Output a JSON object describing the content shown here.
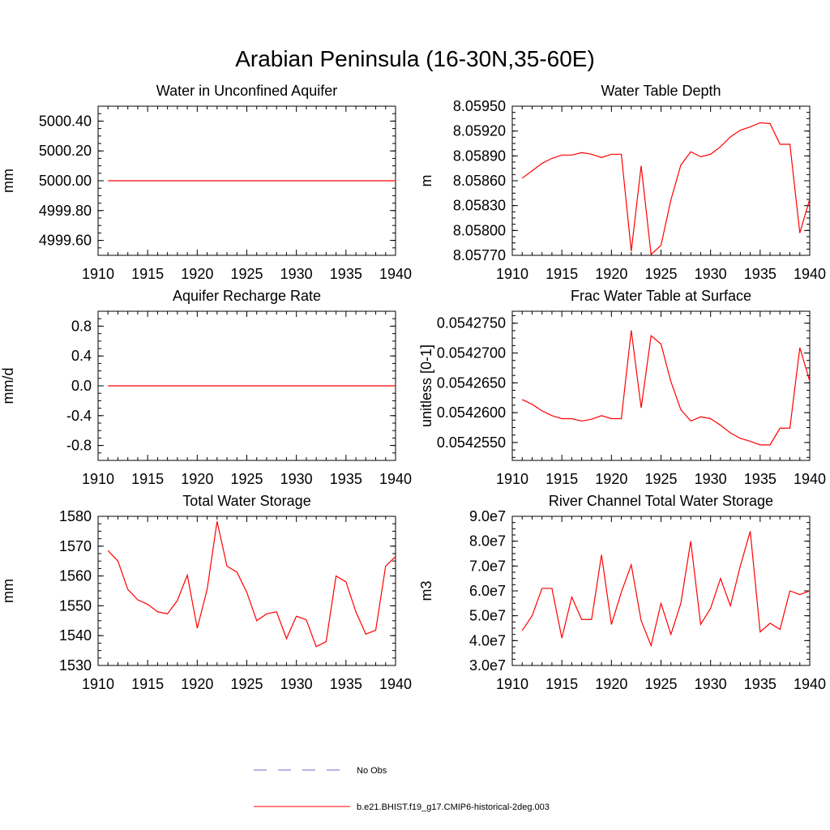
{
  "title": "Arabian Peninsula (16-30N,35-60E)",
  "legend": {
    "no_obs": "No Obs",
    "model": "b.e21.BHIST.f19_g17.CMIP6-historical-2deg.003",
    "no_obs_color": "#6a6acc",
    "model_color": "#ff0000"
  },
  "chart_data": [
    {
      "type": "line",
      "title": "Water in Unconfined Aquifer",
      "ylabel": "mm",
      "xlim": [
        1910,
        1940
      ],
      "ylim": [
        4999.5,
        5000.5
      ],
      "xticks": [
        1910,
        1915,
        1920,
        1925,
        1930,
        1935,
        1940
      ],
      "yticks": [
        4999.6,
        4999.8,
        5000.0,
        5000.2,
        5000.4
      ],
      "ytick_labels": [
        "4999.60",
        "4999.80",
        "5000.00",
        "5000.20",
        "5000.40"
      ],
      "x": [
        1911,
        1940
      ],
      "values": [
        5000.0,
        5000.0
      ]
    },
    {
      "type": "line",
      "title": "Water Table Depth",
      "ylabel": "m",
      "xlim": [
        1910,
        1940
      ],
      "ylim": [
        8.0577,
        8.0595
      ],
      "xticks": [
        1910,
        1915,
        1920,
        1925,
        1930,
        1935,
        1940
      ],
      "yticks": [
        8.0577,
        8.058,
        8.0583,
        8.0586,
        8.0589,
        8.0592,
        8.0595
      ],
      "ytick_labels": [
        "8.05770",
        "8.05800",
        "8.05830",
        "8.05860",
        "8.05890",
        "8.05920",
        "8.05950"
      ],
      "x": [
        1911,
        1912,
        1913,
        1914,
        1915,
        1916,
        1917,
        1918,
        1919,
        1920,
        1921,
        1922,
        1923,
        1924,
        1925,
        1926,
        1927,
        1928,
        1929,
        1930,
        1931,
        1932,
        1933,
        1934,
        1935,
        1936,
        1937,
        1938,
        1939,
        1940
      ],
      "values": [
        8.05863,
        8.05872,
        8.05881,
        8.05887,
        8.05891,
        8.05891,
        8.05894,
        8.05892,
        8.05888,
        8.05892,
        8.05892,
        8.05775,
        8.05878,
        8.05771,
        8.05782,
        8.05837,
        8.05879,
        8.05895,
        8.05889,
        8.05892,
        8.05901,
        8.05913,
        8.05921,
        8.05925,
        8.0593,
        8.05929,
        8.05904,
        8.05904,
        8.05797,
        8.05838
      ]
    },
    {
      "type": "line",
      "title": "Aquifer Recharge Rate",
      "ylabel": "mm/d",
      "xlim": [
        1910,
        1940
      ],
      "ylim": [
        -1.0,
        1.0
      ],
      "xticks": [
        1910,
        1915,
        1920,
        1925,
        1930,
        1935,
        1940
      ],
      "yticks": [
        -0.8,
        -0.4,
        0.0,
        0.4,
        0.8
      ],
      "ytick_labels": [
        "-0.8",
        "-0.4",
        "0.0",
        "0.4",
        "0.8"
      ],
      "x": [
        1911,
        1940
      ],
      "values": [
        0.0,
        0.0
      ]
    },
    {
      "type": "line",
      "title": "Frac Water Table at Surface",
      "ylabel": "unitless [0-1]",
      "xlim": [
        1910,
        1940
      ],
      "ylim": [
        0.054252,
        0.054277
      ],
      "xticks": [
        1910,
        1915,
        1920,
        1925,
        1930,
        1935,
        1940
      ],
      "yticks": [
        0.054255,
        0.05426,
        0.054265,
        0.05427,
        0.054275
      ],
      "ytick_labels": [
        "0.0542550",
        "0.0542600",
        "0.0542650",
        "0.0542700",
        "0.0542750"
      ],
      "x": [
        1911,
        1912,
        1913,
        1914,
        1915,
        1916,
        1917,
        1918,
        1919,
        1920,
        1921,
        1922,
        1923,
        1924,
        1925,
        1926,
        1927,
        1928,
        1929,
        1930,
        1931,
        1932,
        1933,
        1934,
        1935,
        1936,
        1937,
        1938,
        1939,
        1940
      ],
      "values": [
        0.0542622,
        0.0542614,
        0.0542603,
        0.0542595,
        0.054259,
        0.054259,
        0.0542586,
        0.0542589,
        0.0542595,
        0.054259,
        0.054259,
        0.0542738,
        0.0542608,
        0.0542729,
        0.0542715,
        0.0542652,
        0.0542605,
        0.0542586,
        0.0542593,
        0.054259,
        0.0542579,
        0.0542566,
        0.0542557,
        0.0542552,
        0.0542546,
        0.0542546,
        0.0542574,
        0.0542574,
        0.0542709,
        0.0542653
      ]
    },
    {
      "type": "line",
      "title": "Total Water Storage",
      "ylabel": "mm",
      "xlim": [
        1910,
        1940
      ],
      "ylim": [
        1530,
        1580
      ],
      "xticks": [
        1910,
        1915,
        1920,
        1925,
        1930,
        1935,
        1940
      ],
      "yticks": [
        1530,
        1540,
        1550,
        1560,
        1570,
        1580
      ],
      "ytick_labels": [
        "1530",
        "1540",
        "1550",
        "1560",
        "1570",
        "1580"
      ],
      "x": [
        1911,
        1912,
        1913,
        1914,
        1915,
        1916,
        1917,
        1918,
        1919,
        1920,
        1921,
        1922,
        1923,
        1924,
        1925,
        1926,
        1927,
        1928,
        1929,
        1930,
        1931,
        1932,
        1933,
        1934,
        1935,
        1936,
        1937,
        1938,
        1939,
        1940
      ],
      "values": [
        1568.5,
        1565,
        1555.5,
        1552,
        1550.5,
        1548,
        1547.3,
        1551.8,
        1560.3,
        1542.5,
        1555.5,
        1578.3,
        1563.3,
        1561.3,
        1554.5,
        1545,
        1547.3,
        1548,
        1539,
        1546.5,
        1545.3,
        1536.3,
        1538,
        1560,
        1558,
        1548,
        1540.5,
        1541.8,
        1563.3,
        1566.5
      ]
    },
    {
      "type": "line",
      "title": "River Channel Total Water Storage",
      "ylabel": "m3",
      "xlim": [
        1910,
        1940
      ],
      "ylim": [
        30000000,
        90000000
      ],
      "xticks": [
        1910,
        1915,
        1920,
        1925,
        1930,
        1935,
        1940
      ],
      "yticks": [
        30000000,
        40000000,
        50000000,
        60000000,
        70000000,
        80000000,
        90000000
      ],
      "ytick_labels": [
        "3.0e7",
        "4.0e7",
        "5.0e7",
        "6.0e7",
        "7.0e7",
        "8.0e7",
        "9.0e7"
      ],
      "x": [
        1911,
        1912,
        1913,
        1914,
        1915,
        1916,
        1917,
        1918,
        1919,
        1920,
        1921,
        1922,
        1923,
        1924,
        1925,
        1926,
        1927,
        1928,
        1929,
        1930,
        1931,
        1932,
        1933,
        1934,
        1935,
        1936,
        1937,
        1938,
        1939,
        1940
      ],
      "values": [
        44000000,
        50000000,
        61000000,
        61000000,
        41000000,
        57500000,
        48500000,
        48500000,
        74500000,
        46500000,
        59500000,
        70500000,
        48000000,
        38000000,
        55000000,
        42500000,
        55000000,
        80000000,
        46500000,
        53000000,
        65000000,
        54000000,
        70000000,
        84000000,
        43500000,
        47000000,
        44500000,
        60000000,
        58500000,
        60000000
      ]
    }
  ]
}
